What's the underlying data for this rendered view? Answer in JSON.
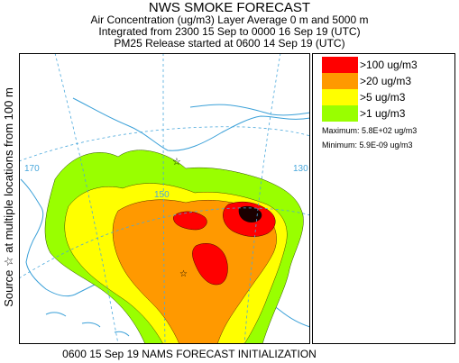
{
  "header": {
    "title": "NWS SMOKE FORECAST",
    "line1": "Air Concentration (ug/m3) Layer Average     0 m and  5000 m",
    "line2": "Integrated from 2300 15 Sep to 0000 16 Sep 19 (UTC)",
    "line3": "PM25 Release started at 0600 14 Sep 19 (UTC)"
  },
  "side_label": "Source ☆  at multiple locations   from  100 m",
  "map": {
    "lon_labels": [
      "170",
      "150",
      "130"
    ],
    "colors": {
      "ocean": "#ffffff",
      "coast": "#3aa0d8",
      "grid": "#4aa8dc",
      "level_1": "#99ff00",
      "level_5": "#ffff00",
      "level_20": "#ff9900",
      "level_100": "#ff0000"
    }
  },
  "legend": {
    "items": [
      {
        "label": ">100 ug/m3",
        "color": "#ff0000"
      },
      {
        "label": ">20 ug/m3",
        "color": "#ff9900"
      },
      {
        "label": ">5 ug/m3",
        "color": "#ffff00"
      },
      {
        "label": ">1 ug/m3",
        "color": "#99ff00"
      }
    ],
    "maximum": "Maximum:  5.8E+02 ug/m3",
    "minimum": "Minimum:  5.9E-09 ug/m3"
  },
  "footer": "0600 15 Sep 19 NAMS FORECAST INITIALIZATION"
}
